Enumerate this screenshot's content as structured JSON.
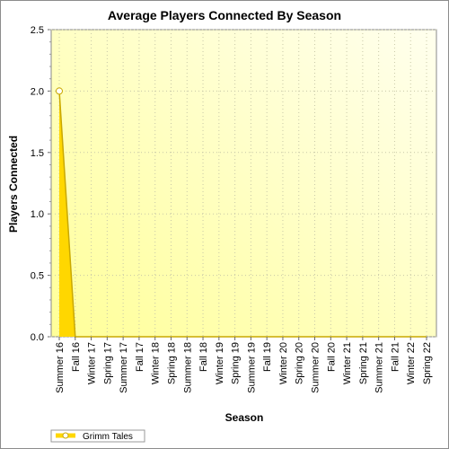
{
  "chart_data": {
    "type": "area",
    "title": "Average Players Connected By Season",
    "xlabel": "Season",
    "ylabel": "Players Connected",
    "ylim": [
      0,
      2.5
    ],
    "yticks": [
      "0.0",
      "0.5",
      "1.0",
      "1.5",
      "2.0",
      "2.5"
    ],
    "grid": true,
    "legend_placement": "bottom-left",
    "categories": [
      "Summer 16",
      "Fall 16",
      "Winter 17",
      "Spring 17",
      "Summer 17",
      "Fall 17",
      "Winter 18",
      "Spring 18",
      "Summer 18",
      "Fall 18",
      "Winter 19",
      "Spring 19",
      "Summer 19",
      "Fall 19",
      "Winter 20",
      "Spring 20",
      "Summer 20",
      "Fall 20",
      "Winter 21",
      "Spring 21",
      "Summer 21",
      "Fall 21",
      "Winter 22",
      "Spring 22"
    ],
    "series": [
      {
        "name": "Grimm Tales",
        "values": [
          2,
          0,
          0,
          0,
          0,
          0,
          0,
          0,
          0,
          0,
          0,
          0,
          0,
          0,
          0,
          0,
          0,
          0,
          0,
          0,
          0,
          0,
          0,
          0
        ],
        "color": "#ffd700",
        "line_color": "#c9a800"
      }
    ]
  }
}
